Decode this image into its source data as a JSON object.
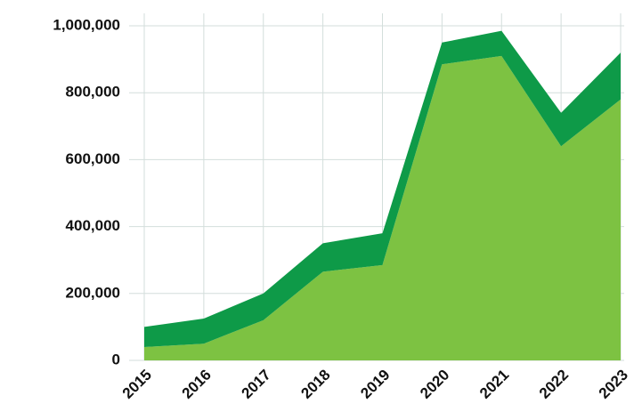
{
  "chart_data": {
    "type": "stacked_area",
    "categories": [
      "2015",
      "2016",
      "2017",
      "2018",
      "2019",
      "2020",
      "2021",
      "2022",
      "2023"
    ],
    "series": [
      {
        "color": "#7dc242",
        "values": [
          40000,
          50000,
          120000,
          265000,
          285000,
          885000,
          910000,
          640000,
          780000
        ]
      },
      {
        "color": "#0e9a48",
        "values": [
          60000,
          75000,
          80000,
          85000,
          95000,
          65000,
          75000,
          100000,
          140000
        ]
      }
    ],
    "ylim": [
      0,
      1000000
    ],
    "yticks": [
      0,
      {
        "value": 200000,
        "label": "200,000"
      },
      {
        "value": 400000,
        "label": "400,000"
      },
      {
        "value": 600000,
        "label": "600,000"
      },
      {
        "value": 800000,
        "label": "800,000"
      },
      {
        "value": 1000000,
        "label": "1,000,000"
      }
    ],
    "grid": true
  }
}
